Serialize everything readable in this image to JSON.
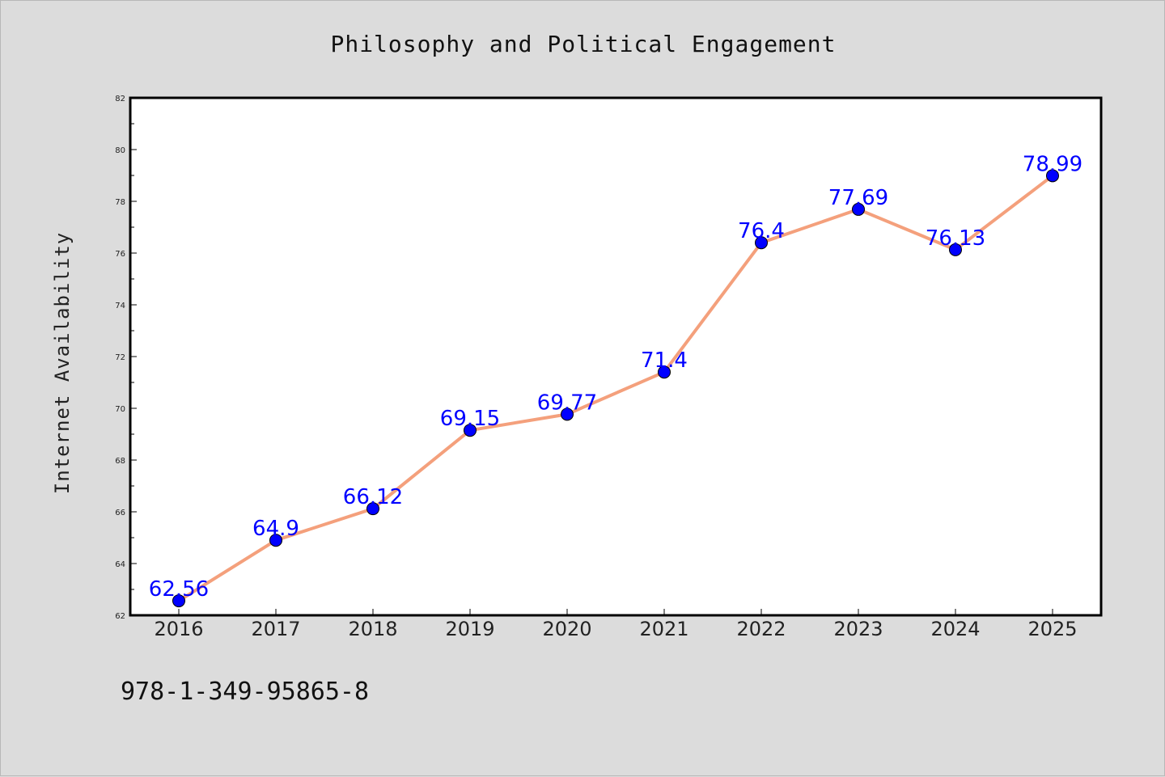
{
  "chart_data": {
    "type": "line",
    "title": "Philosophy and Political Engagement",
    "xlabel": "",
    "ylabel": "Internet Availability",
    "categories": [
      "2016",
      "2017",
      "2018",
      "2019",
      "2020",
      "2021",
      "2022",
      "2023",
      "2024",
      "2025"
    ],
    "series": [
      {
        "values": [
          62.56,
          64.9,
          66.12,
          69.15,
          69.77,
          71.4,
          76.4,
          77.69,
          76.13,
          78.99
        ],
        "labels": [
          "62.56",
          "64.9",
          "66.12",
          "69.15",
          "69.77",
          "71.4",
          "76.4",
          "77.69",
          "76.13",
          "78.99"
        ],
        "line_color": "#f4a07c",
        "marker_color": "#0000ff",
        "label_color": "#0000ff"
      }
    ],
    "ylim": [
      62,
      82
    ],
    "yticks": [
      "62",
      "64",
      "66",
      "68",
      "70",
      "72",
      "74",
      "76",
      "78",
      "80",
      "82"
    ],
    "grid": false,
    "legend": "none",
    "plot_background": "#ffffff",
    "figure_background": "#dcdcdc"
  },
  "footer": {
    "isbn": "978-1-349-95865-8"
  }
}
